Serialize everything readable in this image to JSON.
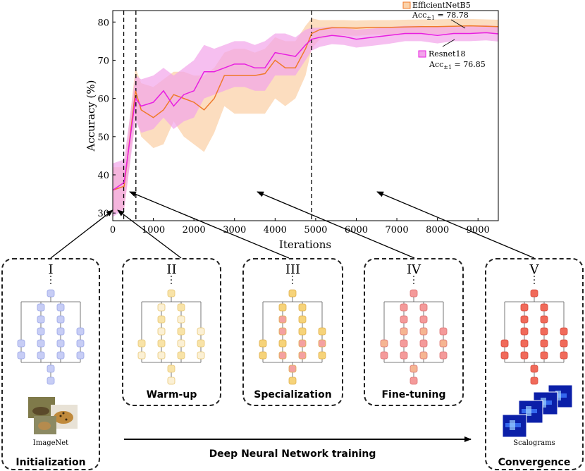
{
  "chart_data": {
    "type": "line",
    "xlabel": "Iterations",
    "ylabel": "Accuracy (%)",
    "xlim": [
      0,
      9500
    ],
    "ylim": [
      28,
      83
    ],
    "xticks": [
      0,
      1000,
      2000,
      3000,
      4000,
      5000,
      6000,
      7000,
      8000,
      9000
    ],
    "yticks": [
      30,
      40,
      50,
      60,
      70,
      80
    ],
    "vlines": [
      270,
      570,
      4900
    ],
    "grid": false,
    "series": [
      {
        "name": "EfficientNetB5",
        "legend_line2": "Acc",
        "legend_sub": "±1",
        "legend_value": " = 78.78",
        "color": "#f07a2b",
        "band_color": "#fbd2aa",
        "x": [
          0,
          280,
          560,
          700,
          1000,
          1250,
          1500,
          1750,
          2000,
          2250,
          2500,
          2750,
          3000,
          3250,
          3500,
          3750,
          4000,
          4250,
          4500,
          4750,
          4900,
          5100,
          5400,
          5700,
          6000,
          6400,
          6800,
          7200,
          7600,
          8000,
          8400,
          8800,
          9200,
          9500
        ],
        "y": [
          36,
          37,
          62,
          57,
          55,
          57,
          61,
          60,
          59,
          57,
          60,
          66,
          66,
          66,
          66,
          66.5,
          70,
          68,
          68,
          73,
          77,
          78,
          78.5,
          78.5,
          78.4,
          78.6,
          78.6,
          78.7,
          78.8,
          78.8,
          78.9,
          79,
          78.9,
          78.8
        ],
        "upper": [
          42,
          42,
          68,
          64,
          63,
          65,
          67,
          67,
          66,
          66,
          68,
          72,
          73,
          73,
          72,
          73,
          76,
          75,
          75,
          79,
          81,
          80.5,
          80.5,
          80.5,
          80.4,
          80.5,
          80.5,
          80.6,
          80.7,
          80.7,
          80.8,
          80.8,
          80.7,
          80.6
        ],
        "lower": [
          30,
          31,
          56,
          50,
          47,
          48,
          54,
          50,
          48,
          46,
          51,
          58,
          56,
          56,
          56,
          56,
          60,
          58,
          60,
          66,
          73,
          75.5,
          76.5,
          76.5,
          76.4,
          76.7,
          76.7,
          76.8,
          76.9,
          76.9,
          77,
          77.2,
          77.1,
          77
        ]
      },
      {
        "name": "Resnet18",
        "legend_line2": "Acc",
        "legend_sub": "±1",
        "legend_value": " = 76.85",
        "color": "#e81ee0",
        "band_color": "#f2a4ea",
        "x": [
          0,
          280,
          560,
          700,
          1000,
          1250,
          1500,
          1750,
          2000,
          2250,
          2500,
          2750,
          3000,
          3250,
          3500,
          3750,
          4000,
          4250,
          4500,
          4750,
          4900,
          5100,
          5400,
          5700,
          6000,
          6400,
          6800,
          7200,
          7600,
          8000,
          8400,
          8800,
          9200,
          9500
        ],
        "y": [
          36,
          38,
          60,
          58,
          59,
          62,
          58,
          61,
          62,
          67,
          67,
          68,
          69,
          69,
          68,
          68,
          72,
          71.5,
          71,
          74,
          75.5,
          76,
          76.5,
          76.2,
          75.5,
          76,
          76.5,
          77,
          77,
          76.5,
          77,
          77,
          77.2,
          76.9
        ],
        "upper": [
          43,
          44,
          66,
          65,
          66,
          68,
          66,
          68,
          70,
          74,
          73,
          74,
          75,
          75,
          74,
          75,
          77,
          77,
          76,
          78,
          78.5,
          78.5,
          78.8,
          78.5,
          78,
          78.3,
          78.7,
          79,
          79,
          78.7,
          79,
          79,
          79.2,
          78.9
        ],
        "lower": [
          29,
          31,
          54,
          51,
          52,
          55,
          52,
          54,
          55,
          60,
          61,
          62,
          63,
          63,
          62,
          62,
          66,
          66,
          66,
          70,
          72.5,
          73.5,
          74.2,
          74,
          73.3,
          73.8,
          74.3,
          75,
          75,
          74.4,
          75,
          75,
          75.2,
          74.9
        ]
      }
    ]
  },
  "stages": [
    {
      "numeral": "I",
      "label": "Initialization",
      "caption": "ImageNet",
      "fill": "#c7cdf5",
      "stroke": "#9aa6e8"
    },
    {
      "numeral": "II",
      "label": "Warm-up",
      "fill": "#f8e3a8",
      "stroke": "#e9c774",
      "fill2": "#fbf0d5"
    },
    {
      "numeral": "III",
      "label": "Specialization",
      "fill": "#f6d37a",
      "stroke": "#e0b04c",
      "fill2": "#f4a1a1"
    },
    {
      "numeral": "IV",
      "label": "Fine-tuning",
      "fill": "#f49a9a",
      "stroke": "#dd7474",
      "fill2": "#f5b592"
    },
    {
      "numeral": "V",
      "label": "Convergence",
      "caption": "Scalograms",
      "fill": "#f06a5a",
      "stroke": "#d64a3c"
    }
  ],
  "bottom_label": "Deep Neural Network training"
}
